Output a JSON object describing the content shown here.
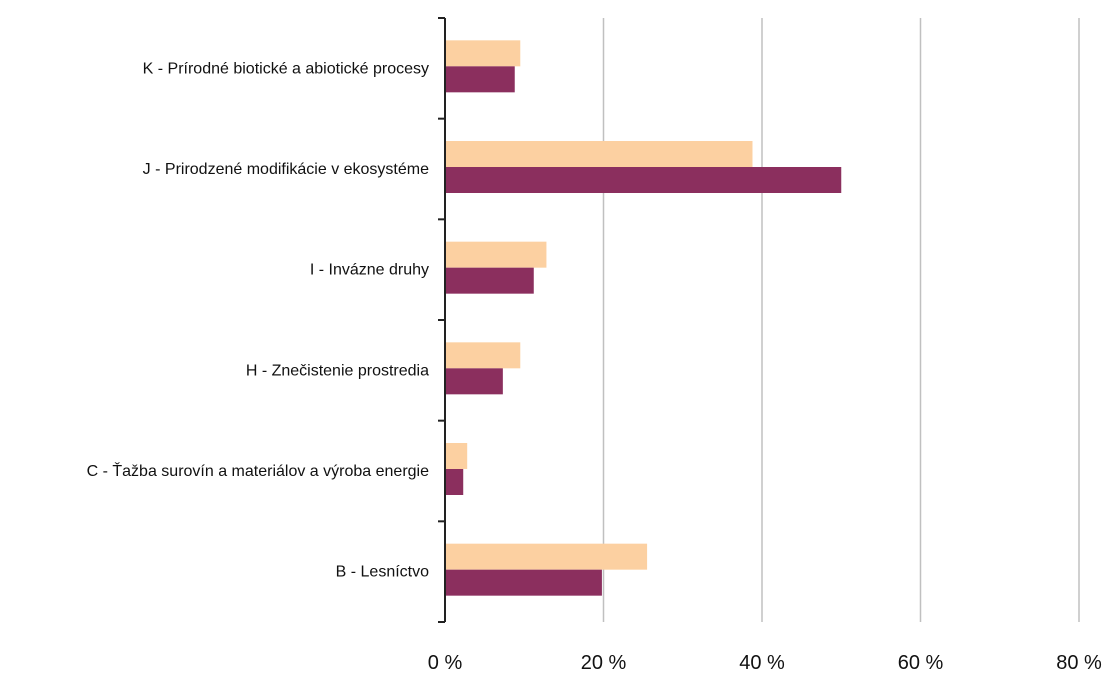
{
  "chart_data": {
    "type": "bar",
    "orientation": "horizontal",
    "categories": [
      "K - Prírodné biotické a abiotické procesy",
      "J - Prirodzené modifikácie v ekosystéme",
      "I - Invázne druhy",
      "H - Znečistenie prostredia",
      "C - Ťažba surovín a materiálov a výroba energie",
      "B - Lesníctvo"
    ],
    "series": [
      {
        "color": "#fcd0a1",
        "values": [
          9.5,
          38.8,
          12.8,
          9.5,
          2.8,
          25.5
        ]
      },
      {
        "color": "#8b2f5e",
        "values": [
          8.8,
          50.0,
          11.2,
          7.3,
          2.3,
          19.8
        ]
      }
    ],
    "xlim": [
      0,
      80
    ],
    "xticks": [
      0,
      20,
      40,
      60,
      80
    ],
    "xtick_labels": [
      "0 %",
      "20 %",
      "40 %",
      "60 %",
      "80 %"
    ],
    "grid": "vertical",
    "grid_color": "#c0c0c0",
    "legend": "none"
  }
}
